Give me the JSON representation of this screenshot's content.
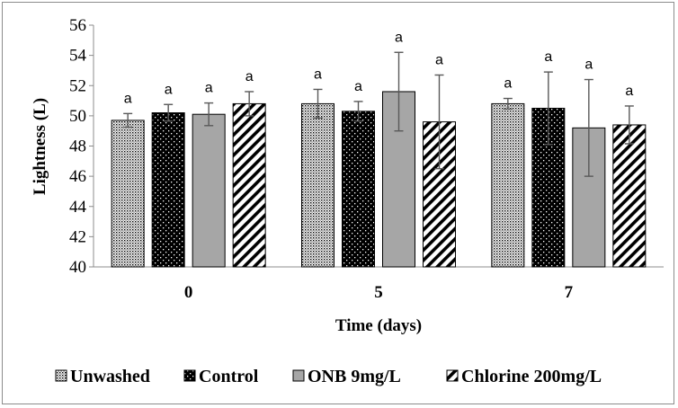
{
  "chart_data": {
    "type": "bar",
    "xlabel": "Time (days)",
    "ylabel": "Lightness (L)",
    "ylim": [
      40,
      56
    ],
    "yticks": [
      40,
      42,
      44,
      46,
      48,
      50,
      52,
      54,
      56
    ],
    "categories": [
      "0",
      "5",
      "7"
    ],
    "grid": false,
    "legend_position": "bottom",
    "series": [
      {
        "name": "Unwashed",
        "pattern": "dots-dense",
        "values": [
          49.7,
          50.8,
          50.8
        ],
        "errors": [
          0.45,
          0.95,
          0.35
        ],
        "labels": [
          "a",
          "a",
          "a"
        ]
      },
      {
        "name": "Control",
        "pattern": "dots-on-black",
        "values": [
          50.2,
          50.3,
          50.5
        ],
        "errors": [
          0.55,
          0.65,
          2.4
        ],
        "labels": [
          "a",
          "a",
          "a"
        ]
      },
      {
        "name": "ONB 9mg/L",
        "pattern": "solid-gray",
        "values": [
          50.1,
          51.6,
          49.2
        ],
        "errors": [
          0.75,
          2.6,
          3.2
        ],
        "labels": [
          "a",
          "a",
          "a"
        ]
      },
      {
        "name": "Chlorine 200mg/L",
        "pattern": "diagonal-stripes",
        "values": [
          50.8,
          49.6,
          49.4
        ],
        "errors": [
          0.8,
          3.1,
          1.25
        ],
        "labels": [
          "a",
          "a",
          "a"
        ]
      }
    ],
    "colors": {
      "bar_outline": "#000000",
      "solid_gray": "#a6a6a6",
      "error_bar": "#595959",
      "axis": "#8c8c8c"
    }
  }
}
